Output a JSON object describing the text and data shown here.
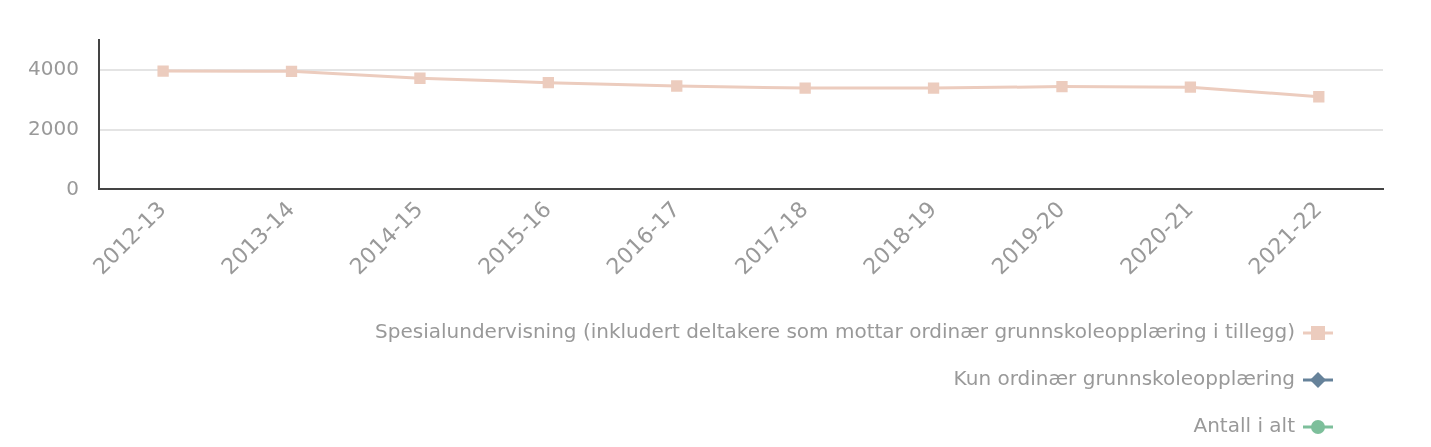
{
  "chart_data": {
    "type": "line",
    "categories": [
      "2012-13",
      "2013-14",
      "2014-15",
      "2015-16",
      "2016-17",
      "2017-18",
      "2018-19",
      "2019-20",
      "2020-21",
      "2021-22"
    ],
    "series": [
      {
        "name": "Spesialundervisning (inkludert deltakere som mottar ordinær grunnskoleopplæring i tillegg)",
        "color": "#ecccbe",
        "marker": "square",
        "values": [
          3960,
          3950,
          3720,
          3570,
          3460,
          3390,
          3390,
          3440,
          3420,
          3100
        ]
      },
      {
        "name": "Kun ordinær grunnskoleopplæring",
        "color": "#66829a",
        "marker": "diamond",
        "values": [
          null,
          null,
          null,
          null,
          null,
          null,
          null,
          null,
          null,
          null
        ]
      },
      {
        "name": "Antall i alt",
        "color": "#7dbf9b",
        "marker": "circle",
        "values": [
          null,
          null,
          null,
          null,
          null,
          null,
          null,
          null,
          null,
          null
        ]
      }
    ],
    "ylim": [
      0,
      5000
    ],
    "yticks": [
      0,
      2000,
      4000
    ],
    "grid": "y",
    "legend": "bottom right",
    "line_style": "solid"
  }
}
